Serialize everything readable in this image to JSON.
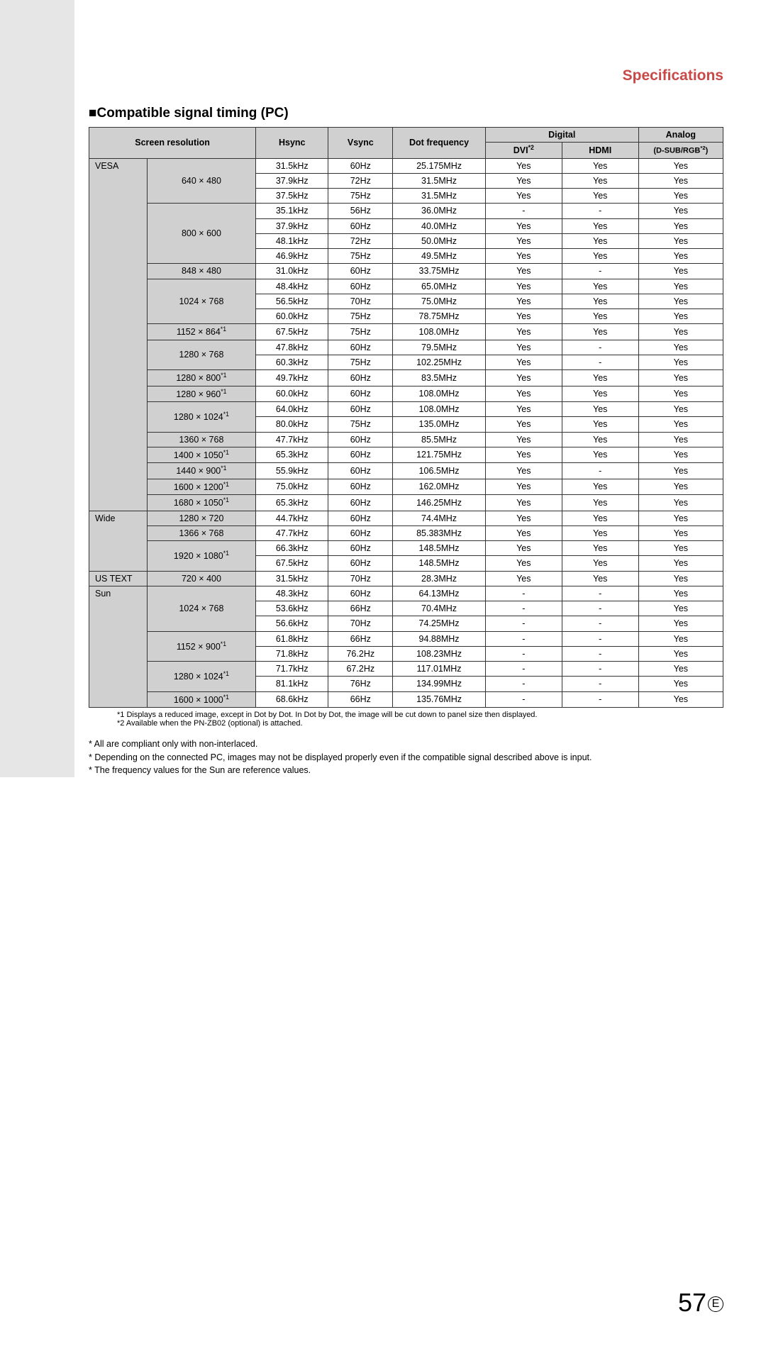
{
  "header": {
    "title": "Specifications"
  },
  "section": {
    "title": "Compatible signal timing (PC)"
  },
  "table": {
    "headers": {
      "screen_resolution": "Screen resolution",
      "hsync": "Hsync",
      "vsync": "Vsync",
      "dot_frequency": "Dot frequency",
      "digital": "Digital",
      "dvi": "DVI",
      "dvi_sup": "*2",
      "hdmi": "HDMI",
      "analog": "Analog",
      "analog_sub": "(D-SUB/RGB",
      "analog_sup": "*2",
      "analog_sub_close": ")"
    },
    "groups": [
      {
        "category": "VESA",
        "blocks": [
          {
            "res": "640 × 480",
            "sup": "",
            "rows": [
              {
                "h": "31.5kHz",
                "v": "60Hz",
                "d": "25.175MHz",
                "dvi": "Yes",
                "hdmi": "Yes",
                "a": "Yes"
              },
              {
                "h": "37.9kHz",
                "v": "72Hz",
                "d": "31.5MHz",
                "dvi": "Yes",
                "hdmi": "Yes",
                "a": "Yes"
              },
              {
                "h": "37.5kHz",
                "v": "75Hz",
                "d": "31.5MHz",
                "dvi": "Yes",
                "hdmi": "Yes",
                "a": "Yes"
              }
            ]
          },
          {
            "res": "800 × 600",
            "sup": "",
            "rows": [
              {
                "h": "35.1kHz",
                "v": "56Hz",
                "d": "36.0MHz",
                "dvi": "-",
                "hdmi": "-",
                "a": "Yes"
              },
              {
                "h": "37.9kHz",
                "v": "60Hz",
                "d": "40.0MHz",
                "dvi": "Yes",
                "hdmi": "Yes",
                "a": "Yes"
              },
              {
                "h": "48.1kHz",
                "v": "72Hz",
                "d": "50.0MHz",
                "dvi": "Yes",
                "hdmi": "Yes",
                "a": "Yes"
              },
              {
                "h": "46.9kHz",
                "v": "75Hz",
                "d": "49.5MHz",
                "dvi": "Yes",
                "hdmi": "Yes",
                "a": "Yes"
              }
            ]
          },
          {
            "res": "848 × 480",
            "sup": "",
            "rows": [
              {
                "h": "31.0kHz",
                "v": "60Hz",
                "d": "33.75MHz",
                "dvi": "Yes",
                "hdmi": "-",
                "a": "Yes"
              }
            ]
          },
          {
            "res": "1024 × 768",
            "sup": "",
            "rows": [
              {
                "h": "48.4kHz",
                "v": "60Hz",
                "d": "65.0MHz",
                "dvi": "Yes",
                "hdmi": "Yes",
                "a": "Yes"
              },
              {
                "h": "56.5kHz",
                "v": "70Hz",
                "d": "75.0MHz",
                "dvi": "Yes",
                "hdmi": "Yes",
                "a": "Yes"
              },
              {
                "h": "60.0kHz",
                "v": "75Hz",
                "d": "78.75MHz",
                "dvi": "Yes",
                "hdmi": "Yes",
                "a": "Yes"
              }
            ]
          },
          {
            "res": "1152 × 864",
            "sup": "*1",
            "rows": [
              {
                "h": "67.5kHz",
                "v": "75Hz",
                "d": "108.0MHz",
                "dvi": "Yes",
                "hdmi": "Yes",
                "a": "Yes"
              }
            ]
          },
          {
            "res": "1280 × 768",
            "sup": "",
            "rows": [
              {
                "h": "47.8kHz",
                "v": "60Hz",
                "d": "79.5MHz",
                "dvi": "Yes",
                "hdmi": "-",
                "a": "Yes"
              },
              {
                "h": "60.3kHz",
                "v": "75Hz",
                "d": "102.25MHz",
                "dvi": "Yes",
                "hdmi": "-",
                "a": "Yes"
              }
            ]
          },
          {
            "res": "1280 × 800",
            "sup": "*1",
            "rows": [
              {
                "h": "49.7kHz",
                "v": "60Hz",
                "d": "83.5MHz",
                "dvi": "Yes",
                "hdmi": "Yes",
                "a": "Yes"
              }
            ]
          },
          {
            "res": "1280 × 960",
            "sup": "*1",
            "rows": [
              {
                "h": "60.0kHz",
                "v": "60Hz",
                "d": "108.0MHz",
                "dvi": "Yes",
                "hdmi": "Yes",
                "a": "Yes"
              }
            ]
          },
          {
            "res": "1280 × 1024",
            "sup": "*1",
            "rows": [
              {
                "h": "64.0kHz",
                "v": "60Hz",
                "d": "108.0MHz",
                "dvi": "Yes",
                "hdmi": "Yes",
                "a": "Yes"
              },
              {
                "h": "80.0kHz",
                "v": "75Hz",
                "d": "135.0MHz",
                "dvi": "Yes",
                "hdmi": "Yes",
                "a": "Yes"
              }
            ]
          },
          {
            "res": "1360 × 768",
            "sup": "",
            "rows": [
              {
                "h": "47.7kHz",
                "v": "60Hz",
                "d": "85.5MHz",
                "dvi": "Yes",
                "hdmi": "Yes",
                "a": "Yes"
              }
            ]
          },
          {
            "res": "1400 × 1050",
            "sup": "*1",
            "rows": [
              {
                "h": "65.3kHz",
                "v": "60Hz",
                "d": "121.75MHz",
                "dvi": "Yes",
                "hdmi": "Yes",
                "a": "Yes"
              }
            ]
          },
          {
            "res": "1440 × 900",
            "sup": "*1",
            "rows": [
              {
                "h": "55.9kHz",
                "v": "60Hz",
                "d": "106.5MHz",
                "dvi": "Yes",
                "hdmi": "-",
                "a": "Yes"
              }
            ]
          },
          {
            "res": "1600 × 1200",
            "sup": "*1",
            "rows": [
              {
                "h": "75.0kHz",
                "v": "60Hz",
                "d": "162.0MHz",
                "dvi": "Yes",
                "hdmi": "Yes",
                "a": "Yes"
              }
            ]
          },
          {
            "res": "1680 × 1050",
            "sup": "*1",
            "rows": [
              {
                "h": "65.3kHz",
                "v": "60Hz",
                "d": "146.25MHz",
                "dvi": "Yes",
                "hdmi": "Yes",
                "a": "Yes"
              }
            ]
          }
        ]
      },
      {
        "category": "Wide",
        "blocks": [
          {
            "res": "1280 × 720",
            "sup": "",
            "rows": [
              {
                "h": "44.7kHz",
                "v": "60Hz",
                "d": "74.4MHz",
                "dvi": "Yes",
                "hdmi": "Yes",
                "a": "Yes"
              }
            ]
          },
          {
            "res": "1366 × 768",
            "sup": "",
            "rows": [
              {
                "h": "47.7kHz",
                "v": "60Hz",
                "d": "85.383MHz",
                "dvi": "Yes",
                "hdmi": "Yes",
                "a": "Yes"
              }
            ]
          },
          {
            "res": "1920 × 1080",
            "sup": "*1",
            "rows": [
              {
                "h": "66.3kHz",
                "v": "60Hz",
                "d": "148.5MHz",
                "dvi": "Yes",
                "hdmi": "Yes",
                "a": "Yes"
              },
              {
                "h": "67.5kHz",
                "v": "60Hz",
                "d": "148.5MHz",
                "dvi": "Yes",
                "hdmi": "Yes",
                "a": "Yes"
              }
            ]
          }
        ]
      },
      {
        "category": "US TEXT",
        "blocks": [
          {
            "res": "720 × 400",
            "sup": "",
            "rows": [
              {
                "h": "31.5kHz",
                "v": "70Hz",
                "d": "28.3MHz",
                "dvi": "Yes",
                "hdmi": "Yes",
                "a": "Yes"
              }
            ]
          }
        ]
      },
      {
        "category": "Sun",
        "blocks": [
          {
            "res": "1024 × 768",
            "sup": "",
            "rows": [
              {
                "h": "48.3kHz",
                "v": "60Hz",
                "d": "64.13MHz",
                "dvi": "-",
                "hdmi": "-",
                "a": "Yes"
              },
              {
                "h": "53.6kHz",
                "v": "66Hz",
                "d": "70.4MHz",
                "dvi": "-",
                "hdmi": "-",
                "a": "Yes"
              },
              {
                "h": "56.6kHz",
                "v": "70Hz",
                "d": "74.25MHz",
                "dvi": "-",
                "hdmi": "-",
                "a": "Yes"
              }
            ]
          },
          {
            "res": "1152 × 900",
            "sup": "*1",
            "rows": [
              {
                "h": "61.8kHz",
                "v": "66Hz",
                "d": "94.88MHz",
                "dvi": "-",
                "hdmi": "-",
                "a": "Yes"
              },
              {
                "h": "71.8kHz",
                "v": "76.2Hz",
                "d": "108.23MHz",
                "dvi": "-",
                "hdmi": "-",
                "a": "Yes"
              }
            ]
          },
          {
            "res": "1280 × 1024",
            "sup": "*1",
            "rows": [
              {
                "h": "71.7kHz",
                "v": "67.2Hz",
                "d": "117.01MHz",
                "dvi": "-",
                "hdmi": "-",
                "a": "Yes"
              },
              {
                "h": "81.1kHz",
                "v": "76Hz",
                "d": "134.99MHz",
                "dvi": "-",
                "hdmi": "-",
                "a": "Yes"
              }
            ]
          },
          {
            "res": "1600 × 1000",
            "sup": "*1",
            "rows": [
              {
                "h": "68.6kHz",
                "v": "66Hz",
                "d": "135.76MHz",
                "dvi": "-",
                "hdmi": "-",
                "a": "Yes"
              }
            ]
          }
        ]
      }
    ]
  },
  "footnotes_small": {
    "f1": "*1  Displays a reduced image, except in Dot by Dot. In Dot by Dot, the image will be cut down to panel size then displayed.",
    "f2": "*2  Available when the PN-ZB02 (optional) is attached."
  },
  "footnotes_main": {
    "n1": "*   All are compliant only with non-interlaced.",
    "n2": "*   Depending on the connected PC, images may not be displayed properly even if the compatible signal described above is input.",
    "n3": "*   The frequency values for the Sun are reference values."
  },
  "page_number": {
    "num": "57",
    "e": "E"
  }
}
